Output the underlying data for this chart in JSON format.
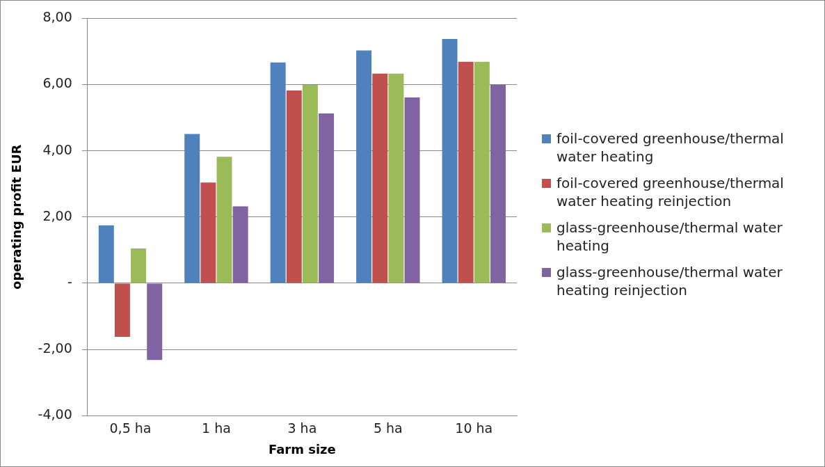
{
  "chart_data": {
    "type": "bar",
    "xlabel": "Farm size",
    "ylabel": "operating profit EUR",
    "categories": [
      "0,5 ha",
      "1 ha",
      "3 ha",
      "5 ha",
      "10 ha"
    ],
    "series": [
      {
        "name": "foil-covered greenhouse/thermal water heating",
        "color": "#4f81bd",
        "values": [
          1.75,
          4.51,
          6.67,
          7.03,
          7.38
        ]
      },
      {
        "name": "foil-covered greenhouse/thermal water heating reinjection",
        "color": "#c0504d",
        "values": [
          -1.62,
          3.04,
          5.82,
          6.33,
          6.69
        ]
      },
      {
        "name": "glass-greenhouse/thermal water heating",
        "color": "#9bbb59",
        "values": [
          1.05,
          3.82,
          5.99,
          6.33,
          6.69
        ]
      },
      {
        "name": "glass-greenhouse/thermal water heating reinjection",
        "color": "#8064a2",
        "values": [
          -2.32,
          2.32,
          5.13,
          5.61,
          5.99
        ]
      }
    ],
    "ylim": [
      -4,
      8
    ],
    "yticks": [
      {
        "value": -4,
        "label": "-4,00"
      },
      {
        "value": -2,
        "label": "-2,00"
      },
      {
        "value": 0,
        "label": "-"
      },
      {
        "value": 2,
        "label": "2,00"
      },
      {
        "value": 4,
        "label": "4,00"
      },
      {
        "value": 6,
        "label": "6,00"
      },
      {
        "value": 8,
        "label": "8,00"
      }
    ],
    "grid": "y",
    "legend": "right"
  }
}
